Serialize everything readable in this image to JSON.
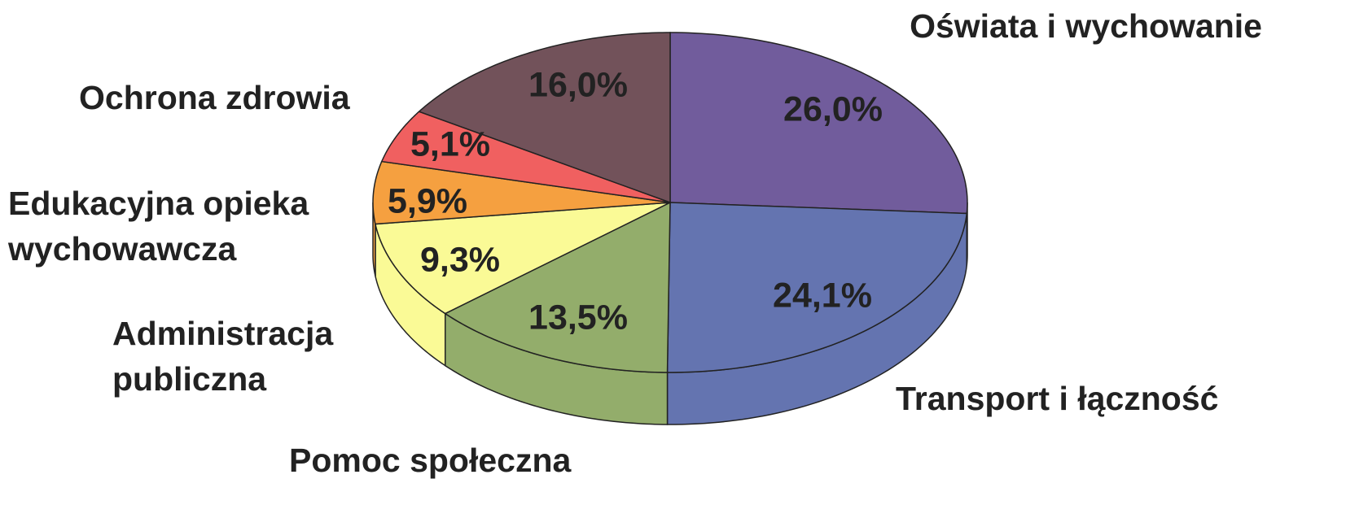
{
  "chart_data": {
    "type": "pie3d",
    "categories": [
      "Oświata i wychowanie",
      "Transport i łączność",
      "Pomoc społeczna",
      "Administracja publiczna",
      "Edukacyjna opieka wychowawcza",
      "Ochrona zdrowia",
      null
    ],
    "values": [
      26.0,
      24.1,
      13.5,
      9.3,
      5.9,
      5.1,
      16.0
    ],
    "value_labels": [
      "26,0%",
      "24,1%",
      "13,5%",
      "9,3%",
      "5,9%",
      "5,1%",
      "16,0%"
    ],
    "colors": [
      "#715c9c",
      "#6474b0",
      "#93ad6b",
      "#fafa96",
      "#f5a040",
      "#f06060",
      "#72525a"
    ]
  }
}
